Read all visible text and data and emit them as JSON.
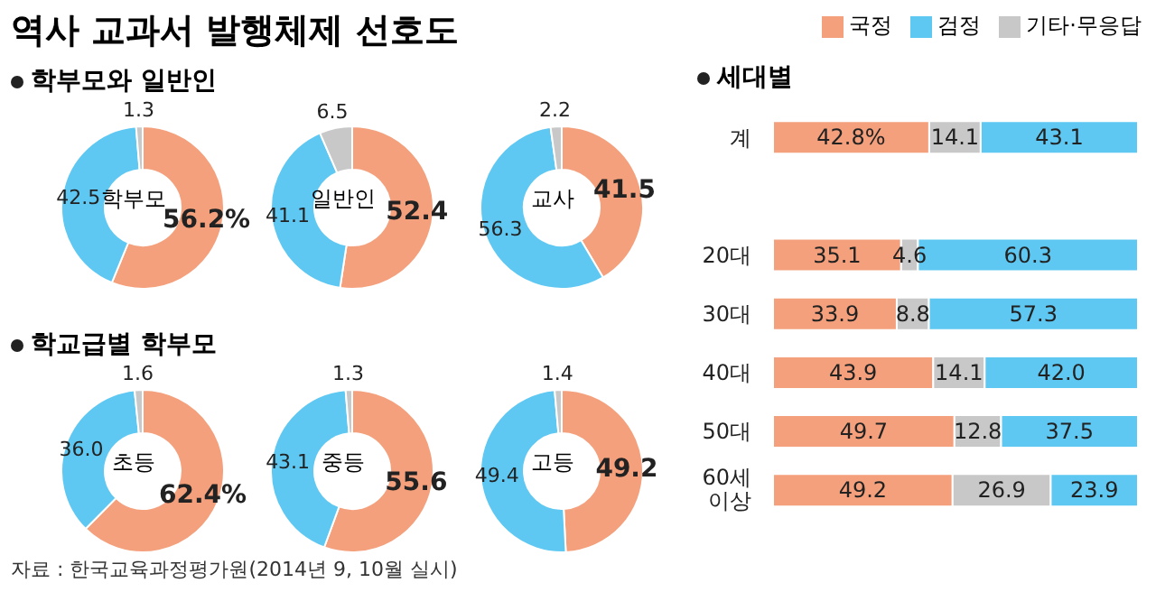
{
  "chart_data": [
    {
      "type": "other",
      "title": "역사 교과서 발행체제 선호도",
      "annotations": [
        "자료 : 한국교육과정평가원(2014년 9, 10월 실시)"
      ]
    },
    {
      "type": "donut",
      "subtitle": "학부모와 일반인",
      "title": "학부모",
      "legend": "top right",
      "categories": [
        "국정",
        "검정",
        "기타·무응답"
      ],
      "values": [
        56.2,
        42.5,
        1.3
      ],
      "colors": [
        "#f4a07c",
        "#5ec8f2",
        "#c8c8c8"
      ],
      "value_labels": [
        "56.2%",
        "42.5",
        "1.3"
      ]
    },
    {
      "type": "donut",
      "title": "일반인",
      "categories": [
        null,
        null,
        null
      ],
      "values": [
        52.4,
        41.1,
        6.5
      ],
      "colors": [
        "#f4a07c",
        "#5ec8f2",
        "#c8c8c8"
      ],
      "value_labels": [
        "52.4",
        "41.1",
        "6.5"
      ]
    },
    {
      "type": "donut",
      "title": "교사",
      "categories": [
        null,
        null,
        null
      ],
      "values": [
        41.5,
        56.3,
        2.2
      ],
      "colors": [
        "#f4a07c",
        "#5ec8f2",
        "#c8c8c8"
      ],
      "value_labels": [
        "41.5",
        "56.3",
        "2.2"
      ]
    },
    {
      "type": "donut",
      "subtitle": "학교급별 학부모",
      "title": "초등",
      "categories": [
        null,
        null,
        null
      ],
      "values": [
        62.4,
        36.0,
        1.6
      ],
      "colors": [
        "#f4a07c",
        "#5ec8f2",
        "#c8c8c8"
      ],
      "value_labels": [
        "62.4%",
        "36.0",
        "1.6"
      ]
    },
    {
      "type": "donut",
      "title": "중등",
      "categories": [
        null,
        null,
        null
      ],
      "values": [
        55.6,
        43.1,
        1.3
      ],
      "colors": [
        "#f4a07c",
        "#5ec8f2",
        "#c8c8c8"
      ],
      "value_labels": [
        "55.6",
        "43.1",
        "1.3"
      ]
    },
    {
      "type": "donut",
      "title": "고등",
      "categories": [
        null,
        null,
        null
      ],
      "values": [
        49.2,
        49.4,
        1.4
      ],
      "colors": [
        "#f4a07c",
        "#5ec8f2",
        "#c8c8c8"
      ],
      "value_labels": [
        "49.2",
        "49.4",
        "1.4"
      ]
    },
    {
      "type": "bar",
      "title": "세대별",
      "orientation": "horizontal",
      "stacked": true,
      "xlim": [
        0,
        100
      ],
      "tick_labels": "y",
      "categories": [
        "계",
        null,
        "20대",
        "30대",
        "40대",
        "50대",
        "60세 이상"
      ],
      "series": [
        {
          "color": "#f4a07c",
          "values": [
            42.8,
            null,
            35.1,
            33.9,
            43.9,
            49.7,
            49.2
          ],
          "value_labels": [
            "42.8%",
            null,
            "35.1",
            "33.9",
            "43.9",
            "49.7",
            "49.2"
          ]
        },
        {
          "color": "#c8c8c8",
          "values": [
            14.1,
            null,
            4.6,
            8.8,
            14.1,
            12.8,
            26.9
          ],
          "value_labels": [
            "14.1",
            null,
            "4.6",
            "8.8",
            "14.1",
            "12.8",
            "26.9"
          ]
        },
        {
          "color": "#5ec8f2",
          "values": [
            43.1,
            null,
            60.3,
            57.3,
            42.0,
            37.5,
            23.9
          ],
          "value_labels": [
            "43.1",
            null,
            "60.3",
            "57.3",
            "42.0",
            "37.5",
            "23.9"
          ]
        }
      ]
    }
  ]
}
